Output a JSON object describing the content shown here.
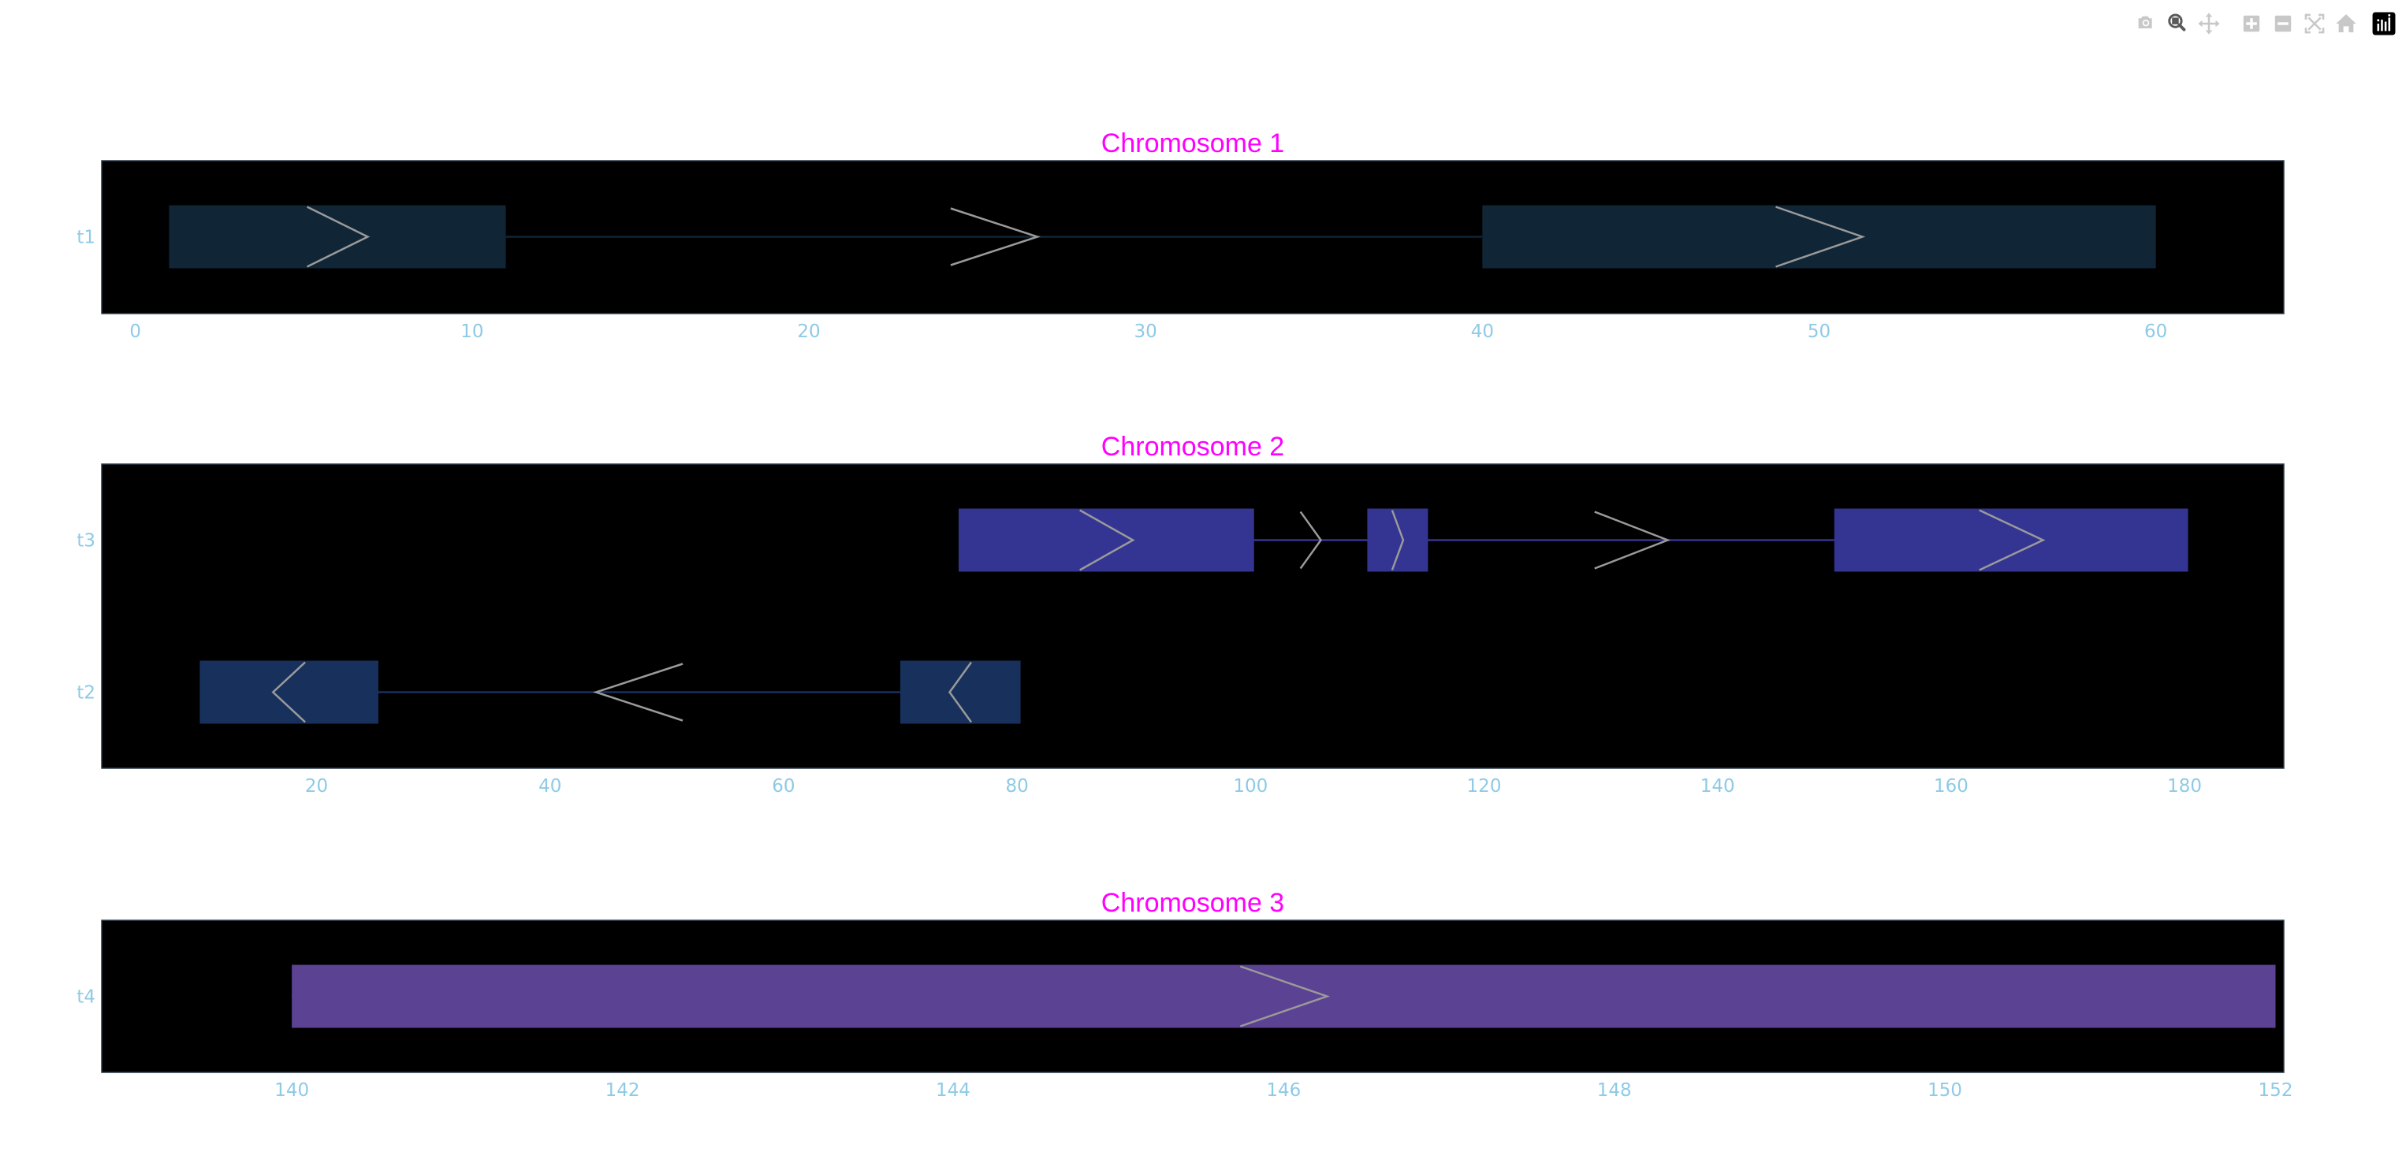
{
  "modebar": {
    "buttons": [
      {
        "icon": "camera-icon",
        "title": "Download plot as a png",
        "active": false
      },
      {
        "icon": "zoom-icon",
        "title": "Zoom",
        "active": true
      },
      {
        "icon": "pan-icon",
        "title": "Pan",
        "active": false
      },
      {
        "icon": "zoom-in-icon",
        "title": "Zoom in",
        "active": false
      },
      {
        "icon": "zoom-out-icon",
        "title": "Zoom out",
        "active": false
      },
      {
        "icon": "autoscale-icon",
        "title": "Autoscale",
        "active": false
      },
      {
        "icon": "home-icon",
        "title": "Reset axes",
        "active": false
      },
      {
        "icon": "plotly-logo-icon",
        "title": "Produced with Plotly",
        "active": false
      }
    ]
  },
  "colors": {
    "title": "#ff00ff",
    "ticks": "#8ecae6",
    "plot_background": "#000000",
    "arrow": "#9a9a9a"
  },
  "chart_data": [
    {
      "type": "gene-track",
      "title": "Chromosome 1",
      "xlim": [
        -1,
        63.8
      ],
      "xticks": [
        0,
        10,
        20,
        30,
        40,
        50,
        60
      ],
      "tracks": [
        {
          "name": "t1",
          "strand": "+",
          "color": "#102536",
          "exons": [
            [
              1,
              11
            ],
            [
              40,
              60
            ]
          ],
          "line": [
            11,
            40
          ]
        }
      ]
    },
    {
      "type": "gene-track",
      "title": "Chromosome 2",
      "xlim": [
        1.6,
        188.5
      ],
      "xticks": [
        20,
        40,
        60,
        80,
        100,
        120,
        140,
        160,
        180
      ],
      "tracks": [
        {
          "name": "t3",
          "strand": "+",
          "color": "#343493",
          "exons": [
            [
              75,
              100.3
            ],
            [
              110,
              115.2
            ],
            [
              150,
              180.3
            ]
          ],
          "line": [
            100.3,
            150
          ]
        },
        {
          "name": "t2",
          "strand": "-",
          "color": "#17305c",
          "exons": [
            [
              10,
              25.3
            ],
            [
              70,
              80.3
            ]
          ],
          "line": [
            25.3,
            70
          ]
        }
      ]
    },
    {
      "type": "gene-track",
      "title": "Chromosome 3",
      "xlim": [
        138.85,
        152.05
      ],
      "xticks": [
        140,
        142,
        144,
        146,
        148,
        150,
        152
      ],
      "tracks": [
        {
          "name": "t4",
          "strand": "+",
          "color": "#5b4293",
          "exons": [
            [
              140,
              152
            ]
          ],
          "line": [
            140,
            152
          ]
        }
      ]
    }
  ]
}
